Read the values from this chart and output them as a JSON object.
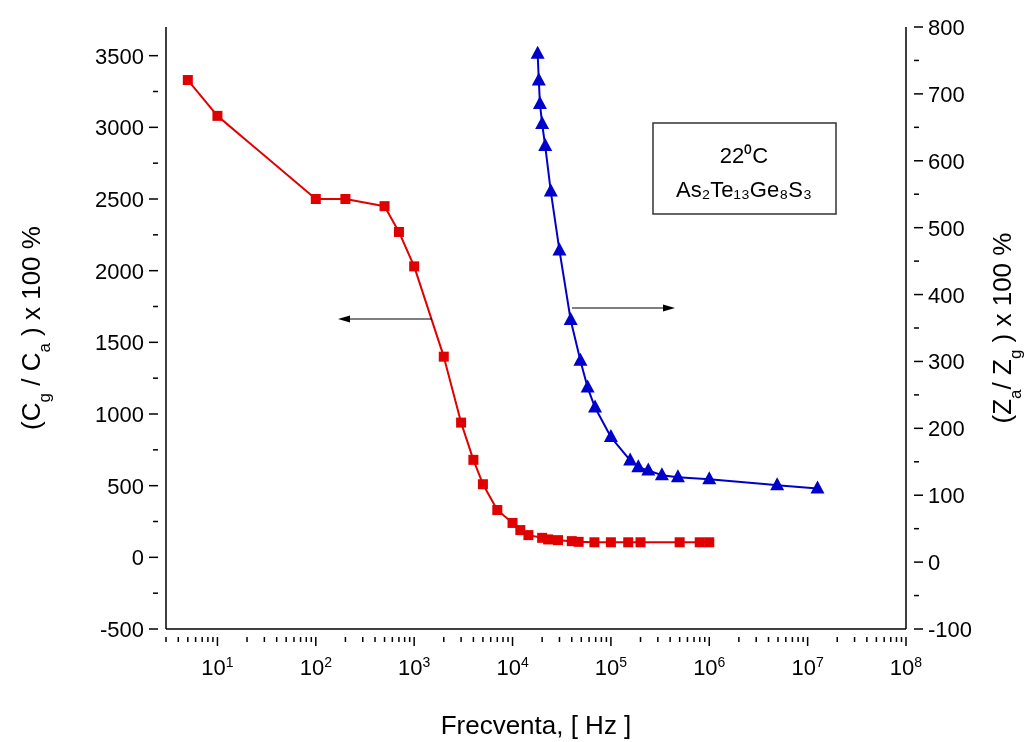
{
  "chart_data": {
    "type": "line",
    "xlabel": "Frecventa, [ Hz ]",
    "ylabel": "(C$_{g}$ / C$_{a}$ ) x 100 %",
    "y2label": "(Z$_{a}$/ Z$_{g}$ ) x 100 %",
    "annotations": [
      "22⁰C",
      "As₂Te₁₃Ge₈S₃"
    ],
    "log": "x",
    "line_style": "solid",
    "xlim": [
      3,
      100000000
    ],
    "xticks": [
      {
        "value": 3,
        "label": null
      },
      {
        "value": 4,
        "label": null
      },
      {
        "value": 5,
        "label": null
      },
      {
        "value": 6,
        "label": null
      },
      {
        "value": 7,
        "label": null
      },
      {
        "value": 8,
        "label": null
      },
      {
        "value": 9,
        "label": null
      },
      {
        "value": 10,
        "label": "10$^{1}$"
      },
      {
        "value": 20,
        "label": null
      },
      {
        "value": 30,
        "label": null
      },
      {
        "value": 40,
        "label": null
      },
      {
        "value": 50,
        "label": null
      },
      {
        "value": 60,
        "label": null
      },
      {
        "value": 70,
        "label": null
      },
      {
        "value": 80,
        "label": null
      },
      {
        "value": 90,
        "label": null
      },
      {
        "value": 100,
        "label": "10$^{2}$"
      },
      {
        "value": 200,
        "label": null
      },
      {
        "value": 300,
        "label": null
      },
      {
        "value": 400,
        "label": null
      },
      {
        "value": 500,
        "label": null
      },
      {
        "value": 600,
        "label": null
      },
      {
        "value": 700,
        "label": null
      },
      {
        "value": 800,
        "label": null
      },
      {
        "value": 900,
        "label": null
      },
      {
        "value": 1000,
        "label": "10$^{3}$"
      },
      {
        "value": 2000,
        "label": null
      },
      {
        "value": 3000,
        "label": null
      },
      {
        "value": 4000,
        "label": null
      },
      {
        "value": 5000,
        "label": null
      },
      {
        "value": 6000,
        "label": null
      },
      {
        "value": 7000,
        "label": null
      },
      {
        "value": 8000,
        "label": null
      },
      {
        "value": 9000,
        "label": null
      },
      {
        "value": 10000,
        "label": "10$^{4}$"
      },
      {
        "value": 20000,
        "label": null
      },
      {
        "value": 30000,
        "label": null
      },
      {
        "value": 40000,
        "label": null
      },
      {
        "value": 50000,
        "label": null
      },
      {
        "value": 60000,
        "label": null
      },
      {
        "value": 70000,
        "label": null
      },
      {
        "value": 80000,
        "label": null
      },
      {
        "value": 90000,
        "label": null
      },
      {
        "value": 100000,
        "label": "10$^{5}$"
      },
      {
        "value": 200000,
        "label": null
      },
      {
        "value": 300000,
        "label": null
      },
      {
        "value": 400000,
        "label": null
      },
      {
        "value": 500000,
        "label": null
      },
      {
        "value": 600000,
        "label": null
      },
      {
        "value": 700000,
        "label": null
      },
      {
        "value": 800000,
        "label": null
      },
      {
        "value": 900000,
        "label": null
      },
      {
        "value": 1000000,
        "label": "10$^{6}$"
      },
      {
        "value": 2000000,
        "label": null
      },
      {
        "value": 3000000,
        "label": null
      },
      {
        "value": 4000000,
        "label": null
      },
      {
        "value": 5000000,
        "label": null
      },
      {
        "value": 6000000,
        "label": null
      },
      {
        "value": 7000000,
        "label": null
      },
      {
        "value": 8000000,
        "label": null
      },
      {
        "value": 9000000,
        "label": null
      },
      {
        "value": 10000000,
        "label": "10$^{7}$"
      },
      {
        "value": 20000000,
        "label": null
      },
      {
        "value": 30000000,
        "label": null
      },
      {
        "value": 40000000,
        "label": null
      },
      {
        "value": 50000000,
        "label": null
      },
      {
        "value": 60000000,
        "label": null
      },
      {
        "value": 70000000,
        "label": null
      },
      {
        "value": 80000000,
        "label": null
      },
      {
        "value": 90000000,
        "label": null
      },
      {
        "value": 100000000,
        "label": "10$^{8}$"
      }
    ],
    "ylim": [
      -500,
      3700
    ],
    "yticks": [
      -500,
      {
        "value": -250,
        "label": null
      },
      0,
      {
        "value": 250,
        "label": null
      },
      500,
      {
        "value": 750,
        "label": null
      },
      1000,
      {
        "value": 1250,
        "label": null
      },
      1500,
      {
        "value": 1750,
        "label": null
      },
      2000,
      {
        "value": 2250,
        "label": null
      },
      2500,
      {
        "value": 2750,
        "label": null
      },
      3000,
      {
        "value": 3250,
        "label": null
      },
      3500
    ],
    "y2lim": [
      -100,
      800
    ],
    "y2ticks": [
      -100,
      {
        "value": -50,
        "label": null
      },
      0,
      {
        "value": 50,
        "label": null
      },
      100,
      {
        "value": 150,
        "label": null
      },
      200,
      {
        "value": 250,
        "label": null
      },
      300,
      {
        "value": 350,
        "label": null
      },
      400,
      {
        "value": 450,
        "label": null
      },
      500,
      {
        "value": 550,
        "label": null
      },
      600,
      {
        "value": 650,
        "label": null
      },
      700,
      {
        "value": 750,
        "label": null
      },
      800
    ],
    "series": [
      {
        "color": "#e00000",
        "marker": "square",
        "x": [
          5,
          10,
          100,
          200,
          500,
          700,
          1000,
          2000,
          3000,
          4000,
          5000,
          7000,
          10000,
          12000,
          14500,
          20000,
          23000,
          29000,
          40000,
          47000,
          68000,
          100000,
          150000,
          200000,
          500000,
          800000,
          1000000
        ],
        "values": [
          3330,
          3080,
          2500,
          2500,
          2450,
          2270,
          2030,
          1400,
          940,
          680,
          510,
          330,
          240,
          190,
          155,
          136,
          125,
          120,
          113,
          108,
          105,
          105,
          105,
          105,
          105,
          105,
          105
        ]
      },
      {
        "color": "#0000cc",
        "marker": "triangle",
        "axis": "y2",
        "x": [
          18000,
          18500,
          19000,
          20000,
          21500,
          24500,
          30000,
          39000,
          49000,
          58000,
          69000,
          100000,
          157000,
          190000,
          240000,
          330000,
          480000,
          1000000,
          4900000,
          12600000
        ],
        "values": [
          760,
          720,
          685,
          655,
          622,
          554,
          466,
          362,
          301,
          261,
          231,
          187,
          152,
          142,
          137,
          130,
          127,
          124,
          115,
          110
        ]
      }
    ]
  }
}
